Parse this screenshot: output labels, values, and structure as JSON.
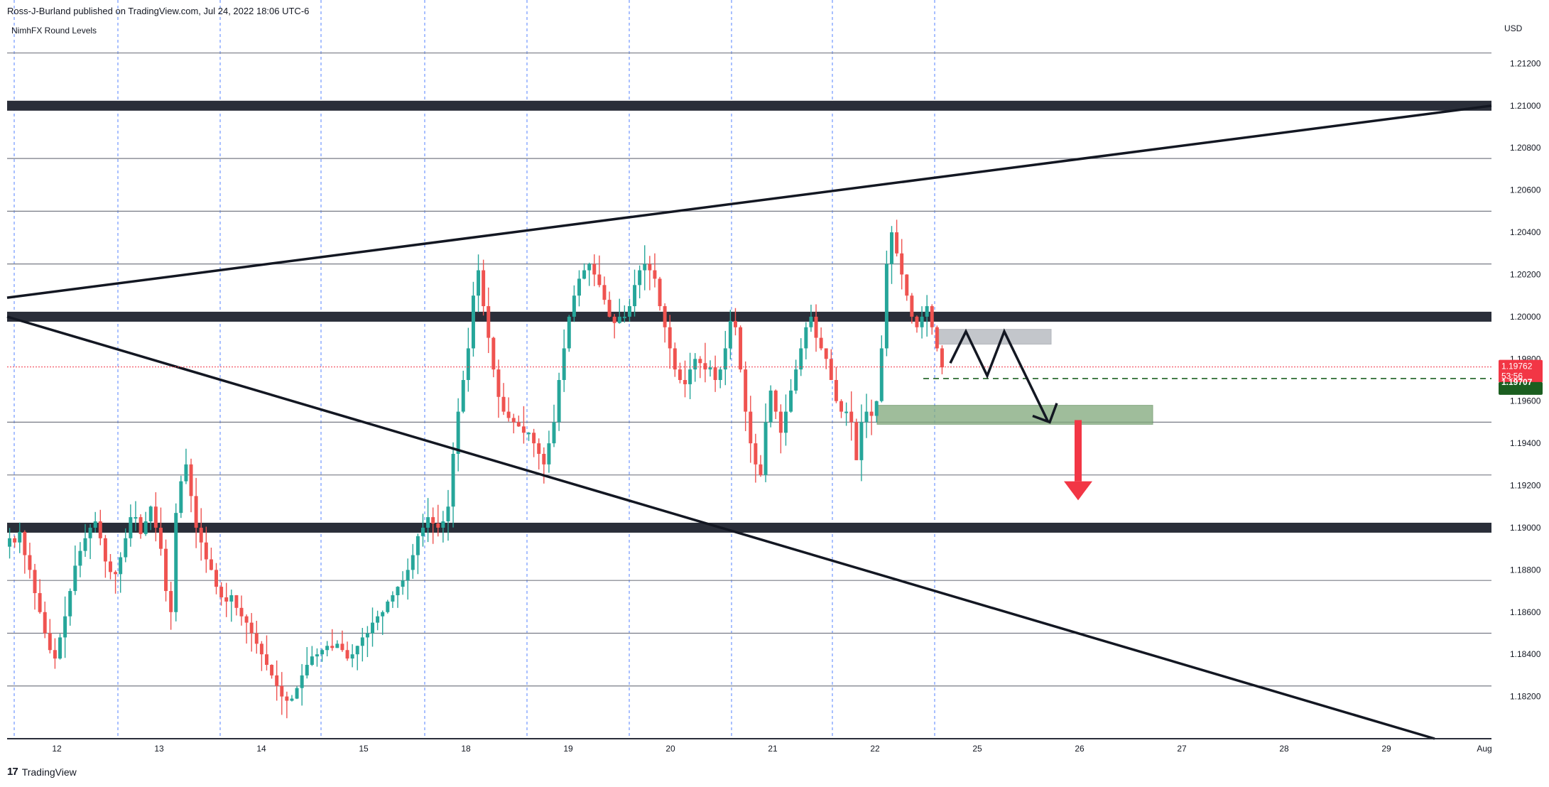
{
  "header": {
    "publisher_line": "Ross-J-Burland published on TradingView.com, Jul 24, 2022 18:06 UTC-6",
    "indicator": "NimhFX Round Levels"
  },
  "footer": {
    "logo_mark": "17",
    "brand": "TradingView"
  },
  "colors": {
    "up": "#26a69a",
    "down": "#ef5350",
    "level_band": "#2a2e39",
    "grid_line": "#787b86",
    "session_line": "#2962ff",
    "trendline": "#131722",
    "price_badge": "#f23645",
    "target_badge": "#1b5e20",
    "target_zone": "#7fa87a",
    "resistance_zone": "#b0b3ba"
  },
  "chart_data": {
    "type": "candlestick",
    "symbol_currency": "USD",
    "ylim": [
      1.18,
      1.214
    ],
    "y_ticks": [
      "1.21200",
      "1.21000",
      "1.20800",
      "1.20600",
      "1.20400",
      "1.20200",
      "1.20000",
      "1.19800",
      "1.19600",
      "1.19400",
      "1.19200",
      "1.19000",
      "1.18800",
      "1.18600",
      "1.18400",
      "1.18200"
    ],
    "x_ticks": [
      "12",
      "13",
      "14",
      "15",
      "18",
      "19",
      "20",
      "21",
      "22",
      "25",
      "26",
      "27",
      "28",
      "29",
      "Aug"
    ],
    "round_levels_major": [
      1.21,
      1.2,
      1.19
    ],
    "round_levels_minor": [
      1.2125,
      1.2075,
      1.205,
      1.2025,
      1.195,
      1.1925,
      1.1875,
      1.185,
      1.1825
    ],
    "last_price": {
      "value": "1.19762",
      "countdown": "53:56"
    },
    "target_price": "1.19707",
    "trendlines": [
      {
        "name": "upper-trendline",
        "from": [
          "11",
          1.2009
        ],
        "to": [
          "Aug",
          1.21
        ]
      },
      {
        "name": "lower-trendline",
        "from": [
          "11",
          1.2
        ],
        "to": [
          "29",
          1.18
        ]
      }
    ],
    "zones": [
      {
        "name": "resistance-zone",
        "from": [
          "22 pm",
          1.1987
        ],
        "to": [
          "25",
          1.1994
        ]
      },
      {
        "name": "target-zone",
        "from": [
          "22",
          1.1949
        ],
        "to": [
          "26",
          1.1958
        ]
      }
    ],
    "candles_note": "hourly EUR/USD-style candles, Jul 11 – Jul 22, 2022",
    "closes": [
      1.1895,
      1.1893,
      1.1898,
      1.1887,
      1.188,
      1.1869,
      1.186,
      1.185,
      1.1842,
      1.1838,
      1.1848,
      1.1858,
      1.187,
      1.1882,
      1.1889,
      1.1895,
      1.19,
      1.1903,
      1.1895,
      1.1884,
      1.1879,
      1.1878,
      1.1886,
      1.1895,
      1.1905,
      1.1905,
      1.1897,
      1.1903,
      1.191,
      1.19,
      1.189,
      1.187,
      1.186,
      1.1907,
      1.1922,
      1.193,
      1.1915,
      1.19,
      1.1893,
      1.1885,
      1.188,
      1.1872,
      1.1867,
      1.1865,
      1.1868,
      1.1862,
      1.1858,
      1.1855,
      1.185,
      1.1845,
      1.184,
      1.1835,
      1.183,
      1.1825,
      1.182,
      1.1818,
      1.1819,
      1.1824,
      1.183,
      1.1835,
      1.1839,
      1.184,
      1.1842,
      1.1844,
      1.1843,
      1.1845,
      1.1842,
      1.1838,
      1.184,
      1.1844,
      1.1848,
      1.185,
      1.1855,
      1.1858,
      1.186,
      1.1865,
      1.1868,
      1.1872,
      1.1875,
      1.188,
      1.1887,
      1.1896,
      1.19,
      1.1905,
      1.1902,
      1.19,
      1.1903,
      1.191,
      1.1935,
      1.1955,
      1.197,
      1.1985,
      1.201,
      1.2022,
      1.2005,
      1.199,
      1.1975,
      1.1962,
      1.1955,
      1.1952,
      1.195,
      1.1948,
      1.1945,
      1.1945,
      1.194,
      1.1935,
      1.193,
      1.194,
      1.195,
      1.197,
      1.1985,
      1.2,
      1.201,
      1.2018,
      1.2022,
      1.2025,
      1.202,
      1.2015,
      1.2008,
      1.2,
      1.1997,
      1.2,
      1.2,
      1.2005,
      1.2015,
      1.2022,
      1.2025,
      1.2022,
      1.2018,
      1.2005,
      1.1995,
      1.1985,
      1.1975,
      1.197,
      1.1968,
      1.1975,
      1.198,
      1.1978,
      1.1975,
      1.1976,
      1.197,
      1.1975,
      1.1985,
      1.1998,
      1.1995,
      1.1975,
      1.1955,
      1.194,
      1.193,
      1.1925,
      1.195,
      1.1965,
      1.1955,
      1.1945,
      1.1955,
      1.1965,
      1.1975,
      1.1985,
      1.1995,
      1.2,
      1.199,
      1.1985,
      1.198,
      1.197,
      1.196,
      1.1955,
      1.1955,
      1.195,
      1.1932,
      1.195,
      1.1955,
      1.1953,
      1.196,
      1.1985,
      1.2025,
      1.204,
      1.203,
      1.202,
      1.201,
      1.2,
      1.1995,
      1.2,
      1.2005,
      1.1995,
      1.1985,
      1.1976
    ]
  }
}
